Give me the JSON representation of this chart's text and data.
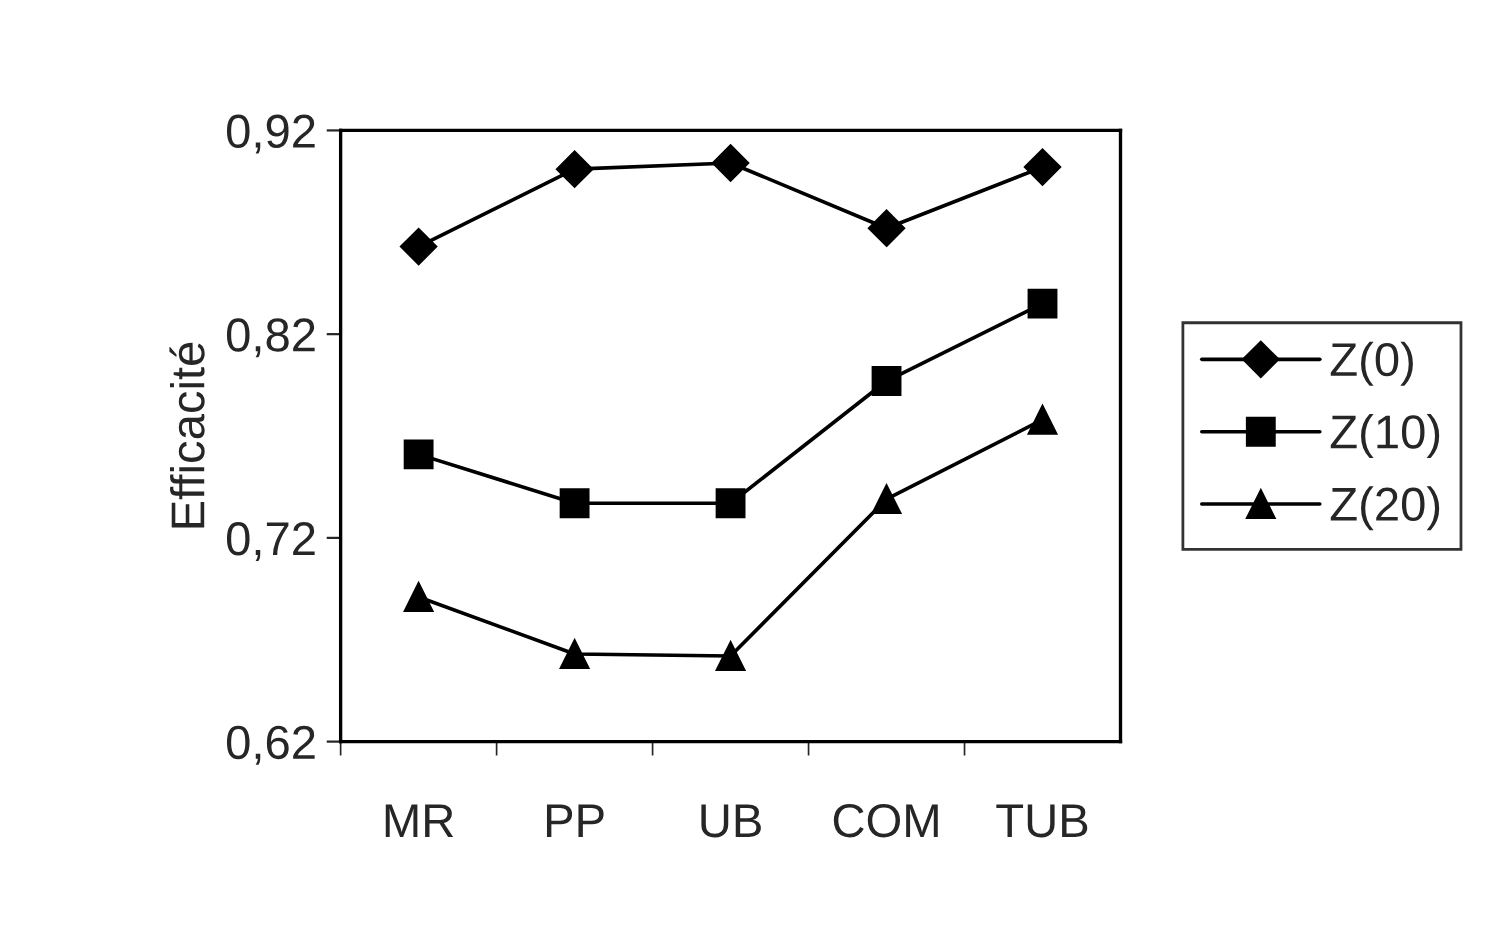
{
  "chart_data": {
    "type": "line",
    "ylabel": "Efficacité",
    "categories": [
      "MR",
      "PP",
      "UB",
      "COM",
      "TUB"
    ],
    "series": [
      {
        "name": "Z(0)",
        "color": "#000000",
        "marker": "diamond",
        "values": [
          0.863,
          0.901,
          0.904,
          0.872,
          0.902
        ]
      },
      {
        "name": "Z(10)",
        "color": "#000000",
        "marker": "square",
        "values": [
          0.761,
          0.737,
          0.737,
          0.797,
          0.835
        ]
      },
      {
        "name": "Z(20)",
        "color": "#000000",
        "marker": "triangle",
        "values": [
          0.691,
          0.663,
          0.662,
          0.739,
          0.778
        ]
      }
    ],
    "ylim": [
      0.62,
      0.92
    ],
    "yticks": [
      {
        "value": 0.62,
        "label": "0,62"
      },
      {
        "value": 0.72,
        "label": "0,72"
      },
      {
        "value": 0.82,
        "label": "0,82"
      },
      {
        "value": 0.92,
        "label": "0,92"
      }
    ],
    "grid": false,
    "legend": "right",
    "line_style": "solid"
  }
}
